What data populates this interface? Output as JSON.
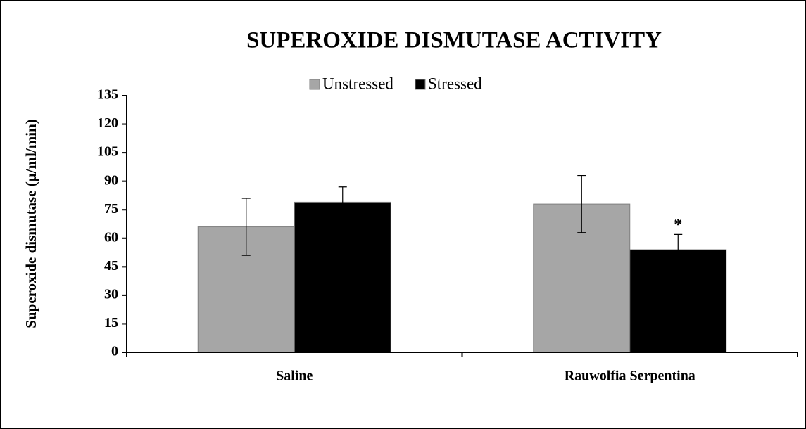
{
  "chart_data": {
    "type": "bar",
    "title": "SUPEROXIDE DISMUTASE ACTIVITY",
    "y_label": "Superoxide dismutase (µ/ml/min)",
    "categories": [
      "Saline",
      "Rauwolfia Serpentina"
    ],
    "series": [
      {
        "name": "Unstressed",
        "color": "#a6a6a6",
        "values": [
          66,
          78
        ],
        "errors": [
          15,
          15
        ]
      },
      {
        "name": "Stressed",
        "color": "#000000",
        "values": [
          79,
          54
        ],
        "errors": [
          8,
          8
        ]
      }
    ],
    "annotations": [
      {
        "text": "*",
        "series": 1,
        "index": 1
      }
    ],
    "ylim": [
      0,
      135
    ],
    "yticks": [
      0,
      15,
      30,
      45,
      60,
      75,
      90,
      105,
      120,
      135
    ],
    "legend": "top"
  }
}
